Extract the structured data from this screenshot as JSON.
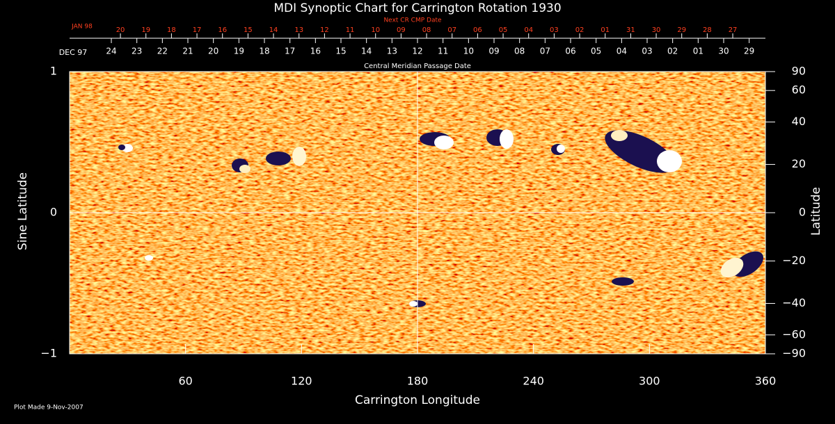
{
  "chart_data": {
    "type": "synoptic",
    "title": "MDI Synoptic Chart for Carrington Rotation 1930",
    "top_axis_label": "Next CR CMP Date",
    "top_start_label": "JAN 98",
    "top_ticks": [
      {
        "value": 26.3,
        "label": "20"
      },
      {
        "value": 39.5,
        "label": "19"
      },
      {
        "value": 52.7,
        "label": "18"
      },
      {
        "value": 65.9,
        "label": "17"
      },
      {
        "value": 79.1,
        "label": "16"
      },
      {
        "value": 92.3,
        "label": "15"
      },
      {
        "value": 105.5,
        "label": "14"
      },
      {
        "value": 118.7,
        "label": "13"
      },
      {
        "value": 131.9,
        "label": "12"
      },
      {
        "value": 145.1,
        "label": "11"
      },
      {
        "value": 158.3,
        "label": "10"
      },
      {
        "value": 171.5,
        "label": "09"
      },
      {
        "value": 184.7,
        "label": "08"
      },
      {
        "value": 197.9,
        "label": "07"
      },
      {
        "value": 211.1,
        "label": "06"
      },
      {
        "value": 224.3,
        "label": "05"
      },
      {
        "value": 237.5,
        "label": "04"
      },
      {
        "value": 250.7,
        "label": "03"
      },
      {
        "value": 263.9,
        "label": "02"
      },
      {
        "value": 277.1,
        "label": "01"
      },
      {
        "value": 290.3,
        "label": "31"
      },
      {
        "value": 303.5,
        "label": "30"
      },
      {
        "value": 316.7,
        "label": "29"
      },
      {
        "value": 329.9,
        "label": "28"
      },
      {
        "value": 343.1,
        "label": "27"
      }
    ],
    "date_axis_label": "Central Meridian Passage Date",
    "date_start_label": "DEC 97",
    "date_ticks": [
      {
        "value": 21.6,
        "label": "24"
      },
      {
        "value": 34.8,
        "label": "23"
      },
      {
        "value": 48.0,
        "label": "22"
      },
      {
        "value": 61.2,
        "label": "21"
      },
      {
        "value": 74.4,
        "label": "20"
      },
      {
        "value": 87.6,
        "label": "19"
      },
      {
        "value": 100.8,
        "label": "18"
      },
      {
        "value": 114.0,
        "label": "17"
      },
      {
        "value": 127.2,
        "label": "16"
      },
      {
        "value": 140.4,
        "label": "15"
      },
      {
        "value": 153.6,
        "label": "14"
      },
      {
        "value": 166.8,
        "label": "13"
      },
      {
        "value": 180.0,
        "label": "12"
      },
      {
        "value": 193.2,
        "label": "11"
      },
      {
        "value": 206.4,
        "label": "10"
      },
      {
        "value": 219.6,
        "label": "09"
      },
      {
        "value": 232.8,
        "label": "08"
      },
      {
        "value": 246.0,
        "label": "07"
      },
      {
        "value": 259.2,
        "label": "06"
      },
      {
        "value": 272.4,
        "label": "05"
      },
      {
        "value": 285.6,
        "label": "04"
      },
      {
        "value": 298.8,
        "label": "03"
      },
      {
        "value": 312.0,
        "label": "02"
      },
      {
        "value": 325.2,
        "label": "01"
      },
      {
        "value": 338.4,
        "label": "30"
      },
      {
        "value": 351.6,
        "label": "29"
      }
    ],
    "x_label": "Carrington Longitude",
    "xlim": [
      0,
      360
    ],
    "xticks": [
      60,
      120,
      180,
      240,
      300,
      360
    ],
    "y_label": "Sine Latitude",
    "ylim": [
      -1,
      1
    ],
    "yticks": [
      {
        "value": -1,
        "label": "−1"
      },
      0,
      1
    ],
    "y2_label": "Latitude",
    "y2scale": "sine",
    "y2lim": [
      -90,
      90
    ],
    "y2ticks": [
      90,
      60,
      40,
      20,
      0,
      {
        "value": -20,
        "label": "−20"
      },
      {
        "value": -40,
        "label": "−40"
      },
      {
        "value": -60,
        "label": "−60"
      },
      {
        "value": -90,
        "label": "−90"
      }
    ],
    "crosshair": {
      "x": 180,
      "y": 0
    },
    "footnote": "Plot Made  9-Nov-2007"
  }
}
